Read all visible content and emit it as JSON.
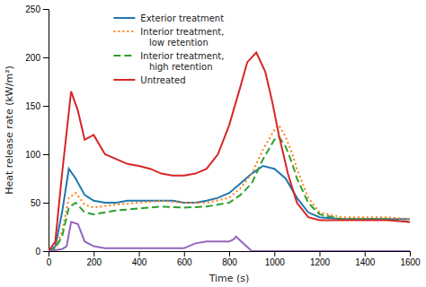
{
  "chart_data": {
    "type": "line",
    "xlabel": "Time (s)",
    "ylabel": "Heat release rate (kW/m²)",
    "xlim": [
      0,
      1600
    ],
    "ylim": [
      0,
      250
    ],
    "xticks": [
      0,
      200,
      400,
      600,
      800,
      1000,
      1200,
      1400,
      1600
    ],
    "yticks": [
      0,
      50,
      100,
      150,
      200,
      250
    ],
    "grid": false,
    "legend": "upper left",
    "series": [
      {
        "name": "Exterior treatment",
        "line_style": "solid",
        "x": [
          0,
          30,
          60,
          90,
          120,
          160,
          200,
          250,
          300,
          350,
          400,
          450,
          500,
          550,
          600,
          650,
          700,
          750,
          800,
          850,
          900,
          950,
          1000,
          1050,
          1100,
          1150,
          1200,
          1300,
          1400,
          1500,
          1600
        ],
        "values": [
          0,
          5,
          40,
          85,
          75,
          58,
          52,
          50,
          50,
          52,
          52,
          52,
          52,
          52,
          50,
          50,
          52,
          55,
          60,
          70,
          80,
          88,
          85,
          75,
          55,
          40,
          35,
          33,
          33,
          33,
          33
        ]
      },
      {
        "name": "Interior treatment,\n   low retention",
        "line_style": "dotted",
        "x": [
          0,
          30,
          60,
          90,
          120,
          160,
          200,
          300,
          400,
          500,
          600,
          700,
          800,
          850,
          900,
          950,
          1000,
          1020,
          1050,
          1080,
          1100,
          1150,
          1200,
          1300,
          1400,
          1500,
          1600
        ],
        "values": [
          0,
          3,
          20,
          55,
          60,
          48,
          45,
          48,
          50,
          52,
          50,
          50,
          55,
          65,
          80,
          105,
          125,
          130,
          118,
          100,
          85,
          55,
          40,
          35,
          35,
          35,
          33
        ]
      },
      {
        "name": "Interior treatment,\n   high retention",
        "line_style": "dashed",
        "x": [
          0,
          30,
          60,
          90,
          120,
          160,
          200,
          300,
          400,
          500,
          600,
          700,
          800,
          850,
          900,
          950,
          1000,
          1020,
          1050,
          1080,
          1100,
          1150,
          1200,
          1300,
          1400,
          1500,
          1600
        ],
        "values": [
          0,
          3,
          15,
          45,
          50,
          40,
          38,
          42,
          44,
          46,
          45,
          46,
          50,
          58,
          70,
          95,
          115,
          118,
          108,
          90,
          75,
          50,
          38,
          33,
          33,
          33,
          30
        ]
      },
      {
        "name": "Untreated",
        "line_style": "solid",
        "x": [
          0,
          30,
          60,
          100,
          130,
          160,
          200,
          250,
          300,
          350,
          400,
          450,
          500,
          550,
          600,
          650,
          700,
          750,
          800,
          850,
          880,
          920,
          960,
          990,
          1020,
          1060,
          1100,
          1150,
          1200,
          1250,
          1300,
          1400,
          1500,
          1600
        ],
        "values": [
          0,
          10,
          80,
          165,
          145,
          115,
          120,
          100,
          95,
          90,
          88,
          85,
          80,
          78,
          78,
          80,
          85,
          100,
          130,
          170,
          195,
          205,
          185,
          155,
          120,
          80,
          50,
          35,
          32,
          32,
          32,
          32,
          32,
          30
        ]
      },
      {
        "line_style": "solid",
        "x": [
          0,
          60,
          80,
          100,
          130,
          160,
          200,
          250,
          600,
          620,
          650,
          700,
          800,
          820,
          830,
          900,
          1600
        ],
        "values": [
          0,
          2,
          5,
          30,
          28,
          10,
          5,
          3,
          3,
          5,
          8,
          10,
          10,
          12,
          15,
          0,
          0
        ]
      }
    ]
  }
}
